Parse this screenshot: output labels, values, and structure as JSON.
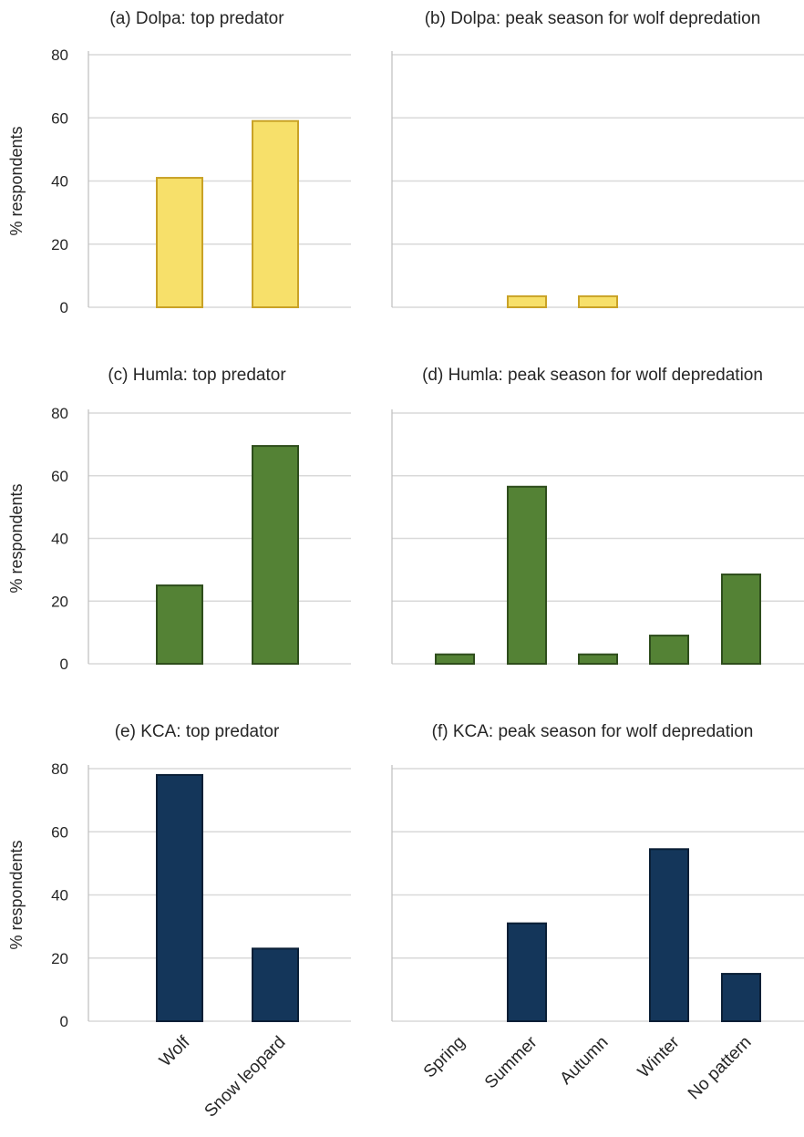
{
  "colors": {
    "dolpa_fill": "#f7e06a",
    "dolpa_stroke": "#c9a227",
    "humla_fill": "#548235",
    "humla_stroke": "#2e4d1c",
    "kca_fill": "#14365a",
    "kca_stroke": "#0a1f36",
    "grid": "#d9d9d9",
    "axis": "#bfbfbf"
  },
  "chart_data": [
    {
      "type": "bar",
      "title": "(a) Dolpa: top predator",
      "categories": [
        "Wolf",
        "Snow leopard"
      ],
      "values": [
        41,
        59
      ],
      "ylabel": "% respondents",
      "ylim": [
        0,
        80
      ],
      "yticks": [
        0,
        20,
        40,
        60,
        80
      ],
      "grid": true,
      "color": "dolpa"
    },
    {
      "type": "bar",
      "title": "(b) Dolpa: peak season for wolf depredation",
      "categories": [
        "Spring",
        "Summer",
        "Autumn",
        "Winter",
        "No pattern"
      ],
      "values": [
        0,
        3.5,
        3.5,
        0,
        0
      ],
      "ylim": [
        0,
        80
      ],
      "grid": true,
      "color": "dolpa"
    },
    {
      "type": "bar",
      "title": "(c) Humla: top predator",
      "categories": [
        "Wolf",
        "Snow leopard"
      ],
      "values": [
        25,
        69.5
      ],
      "ylabel": "% respondents",
      "ylim": [
        0,
        80
      ],
      "yticks": [
        0,
        20,
        40,
        60,
        80
      ],
      "grid": true,
      "color": "humla"
    },
    {
      "type": "bar",
      "title": "(d) Humla: peak season for wolf depredation",
      "categories": [
        "Spring",
        "Summer",
        "Autumn",
        "Winter",
        "No pattern"
      ],
      "values": [
        3,
        56.5,
        3,
        9,
        28.5
      ],
      "ylim": [
        0,
        80
      ],
      "grid": true,
      "color": "humla"
    },
    {
      "type": "bar",
      "title": "(e) KCA: top predator",
      "categories": [
        "Wolf",
        "Snow leopard"
      ],
      "values": [
        78,
        23
      ],
      "ylabel": "% respondents",
      "ylim": [
        0,
        80
      ],
      "yticks": [
        0,
        20,
        40,
        60,
        80
      ],
      "grid": true,
      "color": "kca"
    },
    {
      "type": "bar",
      "title": "(f) KCA: peak season for wolf depredation",
      "categories": [
        "Spring",
        "Summer",
        "Autumn",
        "Winter",
        "No pattern"
      ],
      "values": [
        0,
        31,
        0,
        54.5,
        15
      ],
      "ylim": [
        0,
        80
      ],
      "grid": true,
      "color": "kca"
    }
  ]
}
